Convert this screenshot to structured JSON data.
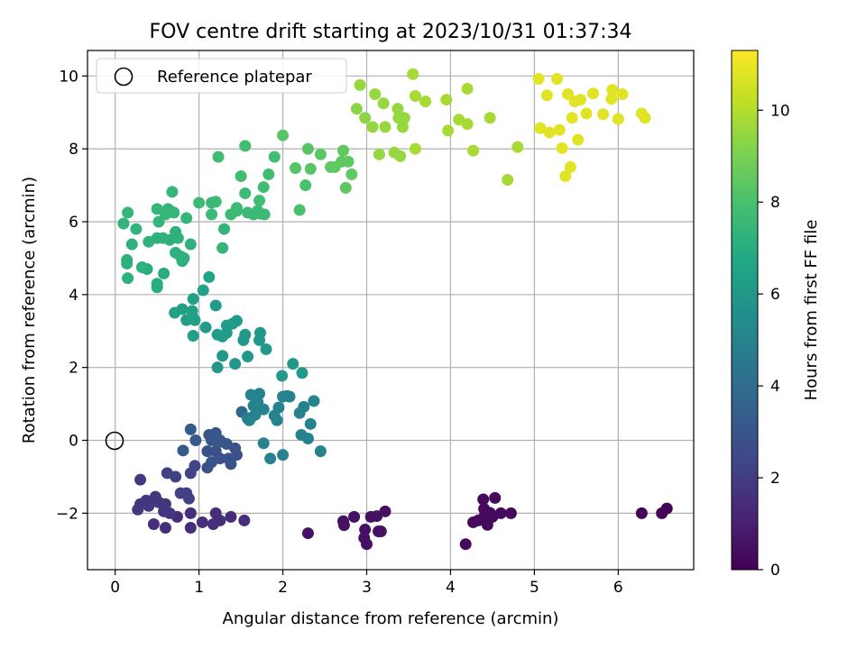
{
  "chart_data": {
    "type": "scatter",
    "title": "FOV centre drift starting at 2023/10/31 01:37:34",
    "xlabel": "Angular distance from reference (arcmin)",
    "ylabel": "Rotation from reference (arcmin)",
    "xlim": [
      -0.33,
      6.9
    ],
    "ylim": [
      -3.55,
      10.7
    ],
    "xticks": [
      0,
      1,
      2,
      3,
      4,
      5,
      6
    ],
    "yticks": [
      -2,
      0,
      2,
      4,
      6,
      8,
      10
    ],
    "grid": true,
    "legend": {
      "position": "top-left",
      "entries": [
        "Reference platepar"
      ]
    },
    "reference_point": {
      "x": 0,
      "y": 0,
      "marker": "open-circle"
    },
    "colorbar": {
      "label": "Hours from first FF file",
      "range": [
        0,
        11.3
      ],
      "ticks": [
        0,
        2,
        4,
        6,
        8,
        10
      ],
      "colormap": "viridis"
    },
    "points": [
      [
        6.28,
        -2.0,
        0.1
      ],
      [
        6.52,
        -2.0,
        0.1
      ],
      [
        6.58,
        -1.87,
        0.1
      ],
      [
        4.18,
        -2.85,
        0.3
      ],
      [
        4.27,
        -2.25,
        0.3
      ],
      [
        4.33,
        -2.2,
        0.3
      ],
      [
        4.39,
        -1.62,
        0.3
      ],
      [
        4.4,
        -1.88,
        0.3
      ],
      [
        4.4,
        -2.1,
        0.3
      ],
      [
        4.44,
        -2.32,
        0.3
      ],
      [
        4.47,
        -1.99,
        0.3
      ],
      [
        4.5,
        -2.1,
        0.3
      ],
      [
        4.53,
        -1.58,
        0.3
      ],
      [
        4.6,
        -2.0,
        0.3
      ],
      [
        4.72,
        -2.0,
        0.3
      ],
      [
        3.0,
        -2.85,
        0.5
      ],
      [
        3.17,
        -2.5,
        0.5
      ],
      [
        3.22,
        -1.95,
        0.5
      ],
      [
        3.12,
        -2.08,
        0.5
      ],
      [
        3.05,
        -2.1,
        0.5
      ],
      [
        2.98,
        -2.45,
        0.5
      ],
      [
        2.97,
        -2.68,
        0.5
      ],
      [
        2.85,
        -2.1,
        0.5
      ],
      [
        2.73,
        -2.33,
        0.5
      ],
      [
        2.72,
        -2.22,
        0.5
      ],
      [
        2.3,
        -2.55,
        0.5
      ],
      [
        3.14,
        -2.5,
        0.5
      ],
      [
        1.54,
        -2.2,
        1.5
      ],
      [
        1.38,
        -2.1,
        1.5
      ],
      [
        1.25,
        -2.2,
        1.5
      ],
      [
        1.2,
        -2.0,
        1.5
      ],
      [
        1.17,
        -2.3,
        1.5
      ],
      [
        1.04,
        -2.25,
        1.5
      ],
      [
        0.9,
        -2.4,
        1.5
      ],
      [
        0.9,
        -2.0,
        1.5
      ],
      [
        0.74,
        -2.1,
        1.5
      ],
      [
        0.6,
        -2.4,
        1.5
      ],
      [
        0.46,
        -2.3,
        1.5
      ],
      [
        0.58,
        -1.95,
        1.8
      ],
      [
        0.65,
        -2.0,
        1.8
      ],
      [
        0.6,
        -1.75,
        1.8
      ],
      [
        0.52,
        -1.7,
        1.8
      ],
      [
        0.48,
        -1.55,
        1.8
      ],
      [
        0.4,
        -1.8,
        1.8
      ],
      [
        0.37,
        -1.65,
        1.8
      ],
      [
        0.3,
        -1.75,
        1.8
      ],
      [
        0.27,
        -1.9,
        1.8
      ],
      [
        0.3,
        -1.08,
        1.8
      ],
      [
        0.62,
        -0.9,
        2.2
      ],
      [
        0.72,
        -1.0,
        2.2
      ],
      [
        0.78,
        -1.45,
        2.2
      ],
      [
        0.85,
        -1.45,
        2.2
      ],
      [
        0.88,
        -1.6,
        2.2
      ],
      [
        0.9,
        -0.9,
        2.3
      ],
      [
        0.95,
        -0.7,
        2.3
      ],
      [
        1.1,
        -0.75,
        2.8
      ],
      [
        1.15,
        -0.6,
        2.8
      ],
      [
        1.25,
        -0.5,
        2.8
      ],
      [
        1.2,
        -0.3,
        2.8
      ],
      [
        1.1,
        -0.3,
        2.8
      ],
      [
        1.35,
        -0.5,
        2.8
      ],
      [
        1.38,
        -0.65,
        2.8
      ],
      [
        1.45,
        -0.4,
        2.8
      ],
      [
        1.43,
        -0.22,
        2.8
      ],
      [
        1.33,
        -0.1,
        3.0
      ],
      [
        1.25,
        0.0,
        3.0
      ],
      [
        1.15,
        0.0,
        3.0
      ],
      [
        1.12,
        0.15,
        3.0
      ],
      [
        1.2,
        0.2,
        3.0
      ],
      [
        1.24,
        -0.05,
        3.0
      ],
      [
        0.9,
        0.3,
        3.2
      ],
      [
        0.96,
        0.0,
        3.2
      ],
      [
        0.81,
        -0.28,
        3.2
      ],
      [
        1.51,
        0.78,
        3.8
      ],
      [
        1.6,
        0.55,
        5.0
      ],
      [
        1.67,
        0.7,
        5.0
      ],
      [
        1.65,
        0.95,
        5.0
      ],
      [
        1.7,
        1.05,
        5.0
      ],
      [
        1.62,
        1.25,
        5.0
      ],
      [
        1.72,
        1.28,
        5.0
      ],
      [
        1.77,
        0.85,
        5.0
      ],
      [
        1.77,
        -0.08,
        5.0
      ],
      [
        1.85,
        -0.5,
        5.0
      ],
      [
        1.9,
        0.68,
        5.0
      ],
      [
        1.93,
        0.55,
        5.0
      ],
      [
        1.95,
        0.9,
        5.0
      ],
      [
        2.0,
        1.2,
        5.0
      ],
      [
        2.05,
        1.22,
        5.0
      ],
      [
        2.0,
        -0.4,
        5.0
      ],
      [
        2.08,
        1.2,
        5.0
      ],
      [
        2.2,
        0.75,
        5.0
      ],
      [
        2.25,
        0.92,
        5.0
      ],
      [
        2.22,
        0.15,
        5.0
      ],
      [
        2.3,
        0.05,
        5.0
      ],
      [
        2.33,
        0.45,
        5.0
      ],
      [
        2.37,
        1.08,
        5.0
      ],
      [
        2.45,
        -0.3,
        5.0
      ],
      [
        1.58,
        0.6,
        5.0
      ],
      [
        1.62,
        0.62,
        5.0
      ],
      [
        1.22,
        2.0,
        6.0
      ],
      [
        1.28,
        2.32,
        6.0
      ],
      [
        1.43,
        2.1,
        6.0
      ],
      [
        1.53,
        2.75,
        6.0
      ],
      [
        1.55,
        2.9,
        6.0
      ],
      [
        1.58,
        2.3,
        6.0
      ],
      [
        1.72,
        2.75,
        6.0
      ],
      [
        1.73,
        2.95,
        6.0
      ],
      [
        1.8,
        2.5,
        6.0
      ],
      [
        2.12,
        2.1,
        6.0
      ],
      [
        2.23,
        1.85,
        6.0
      ],
      [
        1.99,
        1.77,
        6.0
      ],
      [
        1.22,
        2.9,
        6.2
      ],
      [
        1.33,
        2.95,
        6.2
      ],
      [
        1.28,
        2.85,
        6.2
      ],
      [
        1.33,
        3.15,
        6.2
      ],
      [
        1.4,
        3.2,
        6.2
      ],
      [
        1.45,
        3.28,
        6.2
      ],
      [
        1.2,
        3.7,
        6.2
      ],
      [
        1.08,
        3.1,
        6.2
      ],
      [
        0.92,
        3.4,
        6.3
      ],
      [
        0.85,
        3.3,
        6.3
      ],
      [
        0.95,
        3.3,
        6.3
      ],
      [
        0.8,
        3.6,
        6.3
      ],
      [
        0.71,
        3.5,
        6.4
      ],
      [
        0.93,
        3.88,
        6.4
      ],
      [
        0.92,
        3.55,
        6.4
      ],
      [
        0.93,
        2.87,
        6.4
      ],
      [
        1.05,
        4.12,
        6.5
      ],
      [
        1.12,
        4.48,
        6.5
      ],
      [
        0.58,
        4.58,
        7.0
      ],
      [
        0.5,
        4.3,
        7.0
      ],
      [
        0.5,
        4.2,
        7.0
      ],
      [
        0.38,
        4.7,
        7.0
      ],
      [
        0.32,
        4.75,
        7.2
      ],
      [
        0.15,
        4.45,
        7.2
      ],
      [
        0.14,
        4.95,
        7.2
      ],
      [
        0.14,
        4.85,
        7.2
      ],
      [
        0.2,
        5.38,
        7.2
      ],
      [
        0.4,
        5.45,
        7.2
      ],
      [
        0.5,
        5.55,
        7.2
      ],
      [
        0.57,
        5.55,
        7.2
      ],
      [
        0.65,
        5.5,
        7.2
      ],
      [
        0.72,
        5.15,
        7.2
      ],
      [
        0.75,
        5.55,
        7.2
      ],
      [
        0.72,
        5.72,
        7.2
      ],
      [
        0.78,
        5.05,
        7.2
      ],
      [
        0.8,
        4.92,
        7.2
      ],
      [
        0.82,
        5.0,
        7.2
      ],
      [
        0.9,
        5.38,
        7.2
      ],
      [
        0.1,
        5.95,
        7.3
      ],
      [
        0.25,
        5.8,
        7.3
      ],
      [
        0.15,
        6.25,
        7.4
      ],
      [
        0.5,
        6.35,
        7.4
      ],
      [
        0.52,
        6.0,
        7.4
      ],
      [
        0.6,
        6.2,
        7.4
      ],
      [
        0.63,
        6.35,
        7.4
      ],
      [
        0.67,
        6.28,
        7.4
      ],
      [
        0.7,
        6.25,
        7.4
      ],
      [
        0.68,
        6.82,
        7.4
      ],
      [
        0.85,
        6.1,
        7.4
      ],
      [
        1.28,
        5.28,
        7.4
      ],
      [
        1.3,
        5.8,
        7.4
      ],
      [
        1.0,
        6.52,
        7.6
      ],
      [
        1.15,
        6.2,
        7.6
      ],
      [
        1.15,
        6.52,
        7.6
      ],
      [
        1.2,
        6.55,
        7.6
      ],
      [
        1.38,
        6.2,
        7.6
      ],
      [
        1.45,
        6.3,
        7.6
      ],
      [
        1.45,
        6.38,
        7.6
      ],
      [
        1.55,
        6.78,
        7.6
      ],
      [
        1.58,
        6.25,
        7.6
      ],
      [
        1.65,
        6.2,
        7.6
      ],
      [
        1.7,
        6.3,
        7.6
      ],
      [
        1.73,
        6.22,
        7.6
      ],
      [
        1.78,
        6.2,
        7.6
      ],
      [
        1.72,
        6.58,
        7.8
      ],
      [
        1.77,
        6.95,
        7.8
      ],
      [
        1.83,
        7.3,
        7.8
      ],
      [
        1.9,
        7.78,
        7.8
      ],
      [
        1.5,
        7.25,
        7.8
      ],
      [
        1.55,
        8.08,
        7.8
      ],
      [
        1.23,
        7.78,
        7.8
      ],
      [
        2.2,
        6.32,
        8.0
      ],
      [
        2.27,
        7.0,
        8.0
      ],
      [
        2.33,
        7.45,
        8.3
      ],
      [
        2.15,
        7.47,
        8.3
      ],
      [
        2.3,
        8.0,
        8.3
      ],
      [
        2.0,
        8.37,
        8.3
      ],
      [
        2.45,
        7.85,
        8.4
      ],
      [
        2.57,
        7.5,
        8.5
      ],
      [
        2.62,
        7.5,
        8.5
      ],
      [
        2.7,
        7.65,
        8.5
      ],
      [
        2.72,
        7.95,
        8.5
      ],
      [
        2.75,
        6.93,
        8.5
      ],
      [
        2.78,
        7.65,
        8.5
      ],
      [
        2.82,
        7.3,
        8.5
      ],
      [
        2.88,
        9.1,
        9.3
      ],
      [
        2.98,
        8.85,
        9.3
      ],
      [
        2.92,
        9.75,
        9.5
      ],
      [
        3.07,
        8.6,
        9.5
      ],
      [
        3.1,
        9.5,
        9.5
      ],
      [
        3.15,
        7.85,
        9.5
      ],
      [
        3.2,
        9.25,
        9.5
      ],
      [
        3.22,
        8.6,
        9.5
      ],
      [
        3.33,
        7.9,
        9.5
      ],
      [
        3.37,
        9.1,
        9.5
      ],
      [
        3.38,
        8.85,
        9.5
      ],
      [
        3.4,
        7.8,
        9.5
      ],
      [
        3.43,
        8.6,
        9.5
      ],
      [
        3.45,
        8.85,
        9.5
      ],
      [
        3.55,
        10.05,
        9.8
      ],
      [
        3.58,
        9.45,
        9.8
      ],
      [
        3.58,
        8.0,
        9.8
      ],
      [
        3.7,
        9.3,
        9.8
      ],
      [
        3.95,
        9.35,
        9.8
      ],
      [
        3.97,
        8.5,
        9.8
      ],
      [
        4.1,
        8.8,
        9.8
      ],
      [
        4.2,
        8.68,
        9.8
      ],
      [
        4.2,
        9.65,
        9.8
      ],
      [
        4.27,
        7.95,
        9.8
      ],
      [
        4.47,
        8.85,
        9.8
      ],
      [
        4.68,
        7.15,
        9.8
      ],
      [
        4.8,
        8.05,
        9.8
      ],
      [
        5.05,
        9.92,
        10.8
      ],
      [
        5.07,
        8.57,
        10.8
      ],
      [
        5.15,
        9.47,
        10.8
      ],
      [
        5.18,
        8.45,
        10.8
      ],
      [
        5.27,
        9.92,
        10.8
      ],
      [
        5.3,
        8.52,
        10.8
      ],
      [
        5.33,
        8.02,
        10.8
      ],
      [
        5.37,
        7.25,
        10.8
      ],
      [
        5.4,
        9.5,
        10.8
      ],
      [
        5.43,
        7.5,
        10.8
      ],
      [
        5.45,
        8.85,
        10.8
      ],
      [
        5.48,
        9.3,
        10.8
      ],
      [
        5.52,
        8.25,
        10.8
      ],
      [
        5.55,
        9.35,
        10.8
      ],
      [
        5.62,
        8.97,
        10.8
      ],
      [
        5.7,
        9.52,
        10.8
      ],
      [
        5.82,
        8.95,
        10.8
      ],
      [
        5.92,
        9.37,
        10.8
      ],
      [
        5.93,
        9.62,
        10.8
      ],
      [
        6.0,
        8.82,
        10.8
      ],
      [
        6.05,
        9.5,
        10.8
      ],
      [
        6.28,
        8.97,
        10.8
      ],
      [
        6.32,
        8.85,
        10.8
      ]
    ]
  }
}
